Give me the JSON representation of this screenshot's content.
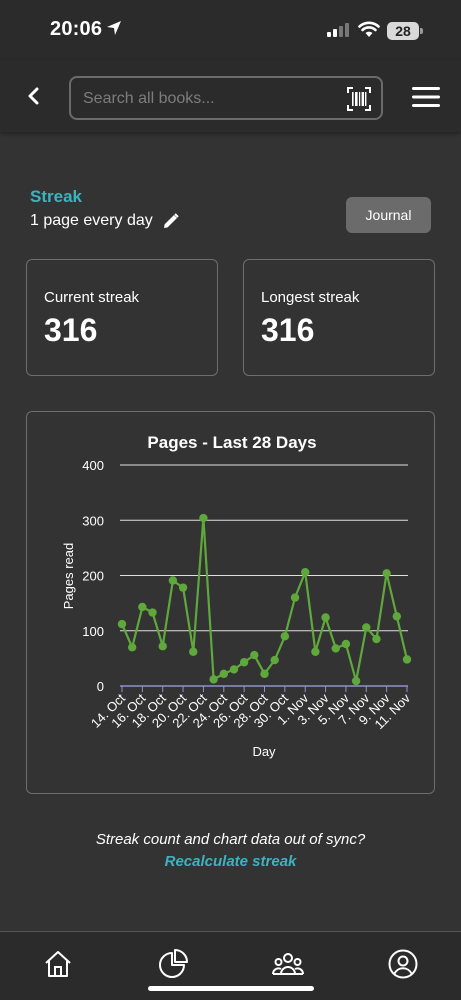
{
  "status_bar": {
    "time": "20:06",
    "battery": "28",
    "icons": [
      "location-arrow-icon",
      "cellular-signal-icon",
      "wifi-icon",
      "battery-icon"
    ]
  },
  "header": {
    "search_placeholder": "Search all books...",
    "icons": [
      "back-chevron-icon",
      "barcode-scan-icon",
      "hamburger-menu-icon"
    ]
  },
  "streak": {
    "title": "Streak",
    "goal": "1 page every day",
    "journal_label": "Journal",
    "current_label": "Current streak",
    "current_value": "316",
    "longest_label": "Longest streak",
    "longest_value": "316"
  },
  "chart_data": {
    "type": "line",
    "title": "Pages - Last 28 Days",
    "xlabel": "Day",
    "ylabel": "Pages read",
    "ylim": [
      0,
      400
    ],
    "y_ticks": [
      0,
      100,
      200,
      300,
      400
    ],
    "x_tick_labels": [
      "14. Oct",
      "16. Oct",
      "18. Oct",
      "20. Oct",
      "22. Oct",
      "24. Oct",
      "26. Oct",
      "28. Oct",
      "30. Oct",
      "1. Nov",
      "3. Nov",
      "5. Nov",
      "7. Nov",
      "9. Nov",
      "11. Nov"
    ],
    "x": [
      "14. Oct",
      "15. Oct",
      "16. Oct",
      "17. Oct",
      "18. Oct",
      "19. Oct",
      "20. Oct",
      "21. Oct",
      "22. Oct",
      "23. Oct",
      "24. Oct",
      "25. Oct",
      "26. Oct",
      "27. Oct",
      "28. Oct",
      "29. Oct",
      "30. Oct",
      "31. Oct",
      "1. Nov",
      "2. Nov",
      "3. Nov",
      "4. Nov",
      "5. Nov",
      "6. Nov",
      "7. Nov",
      "8. Nov",
      "9. Nov",
      "10. Nov",
      "11. Nov"
    ],
    "values": [
      112,
      70,
      143,
      133,
      72,
      191,
      178,
      62,
      304,
      12,
      22,
      30,
      43,
      56,
      22,
      47,
      90,
      160,
      206,
      62,
      124,
      68,
      76,
      9,
      106,
      85,
      204,
      126,
      48
    ],
    "grid": true,
    "legend": "none",
    "series_color": "#5fa83c"
  },
  "footer_note": {
    "text": "Streak count and chart data out of sync?",
    "link": "Recalculate streak"
  },
  "bottom_nav": {
    "items": [
      "home-icon",
      "stats-pie-icon",
      "community-icon",
      "profile-icon"
    ]
  },
  "colors": {
    "accent": "#3bb4c1",
    "background": "#333333",
    "bar_background": "#2b2b2b",
    "line": "#5fa83c"
  }
}
